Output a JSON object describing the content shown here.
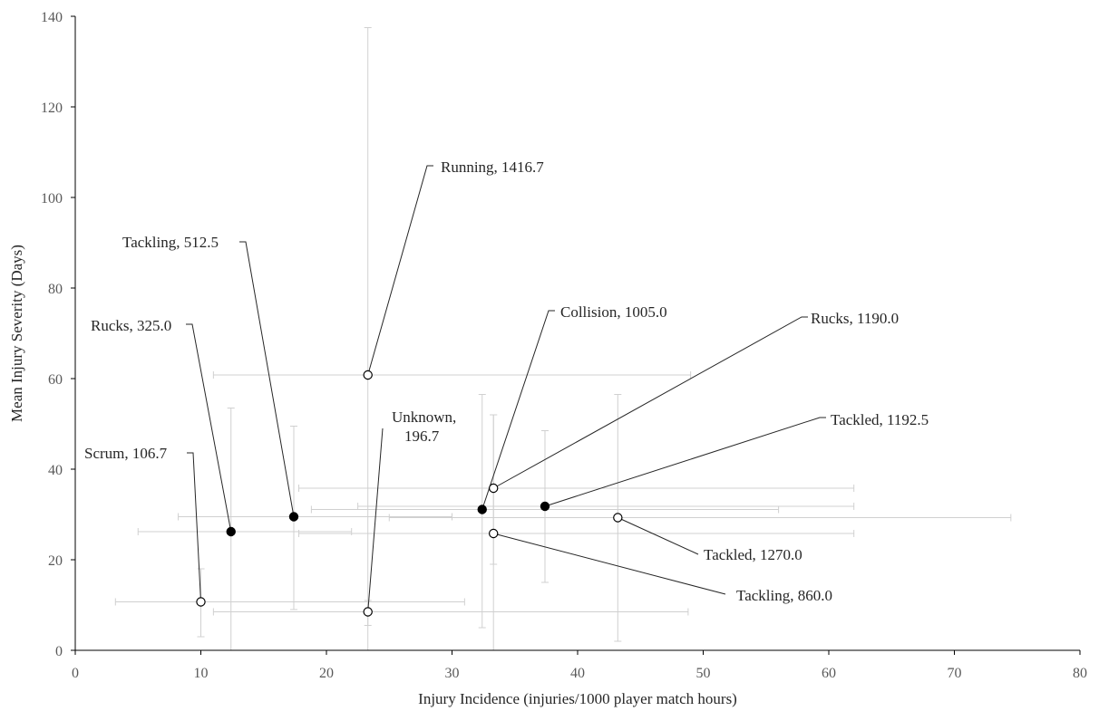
{
  "chart_data": {
    "type": "scatter",
    "xlabel": "Injury Incidence (injuries/1000 player match hours)",
    "ylabel": "Mean Injury Severity (Days)",
    "xlim": [
      0,
      80
    ],
    "ylim": [
      0,
      140
    ],
    "xticks": [
      "0",
      "10",
      "20",
      "30",
      "40",
      "50",
      "60",
      "70",
      "80"
    ],
    "yticks": [
      "0",
      "20",
      "40",
      "60",
      "80",
      "100",
      "120",
      "140"
    ],
    "grid": false,
    "legend": "none",
    "colors": {
      "axis": "#000000",
      "error_bar": "#d0d0d0",
      "leader": "#262626",
      "marker": "#000000",
      "open_fill": "#ffffff"
    },
    "points": [
      {
        "label": "Running, 1416.7",
        "x": 23.3,
        "y": 60.8,
        "marker": "open",
        "xerr": [
          11.0,
          49.0
        ],
        "yerr": [
          0,
          137.5
        ]
      },
      {
        "label": "Tackling, 512.5",
        "x": 17.4,
        "y": 29.5,
        "marker": "filled",
        "xerr": [
          8.2,
          30.0
        ],
        "yerr": [
          9.0,
          49.5
        ]
      },
      {
        "label": "Rucks, 325.0",
        "x": 12.4,
        "y": 26.2,
        "marker": "filled",
        "xerr": [
          5.0,
          22.0
        ],
        "yerr": [
          0,
          53.5
        ]
      },
      {
        "label": "Scrum, 106.7",
        "x": 10.0,
        "y": 10.7,
        "marker": "open",
        "xerr": [
          3.2,
          31.0
        ],
        "yerr": [
          3.0,
          18.0
        ]
      },
      {
        "label": "Unknown,|196.7",
        "x": 23.3,
        "y": 8.5,
        "marker": "open",
        "xerr": [
          11.0,
          48.8
        ],
        "yerr": [
          5.5,
          11.0
        ]
      },
      {
        "label": "Collision, 1005.0",
        "x": 32.4,
        "y": 31.1,
        "marker": "filled",
        "xerr": [
          18.8,
          56.0
        ],
        "yerr": [
          5.0,
          56.5
        ]
      },
      {
        "label": "Rucks, 1190.0",
        "x": 33.3,
        "y": 35.8,
        "marker": "open",
        "xerr": [
          17.8,
          62.0
        ],
        "yerr": [
          19.0,
          52.0
        ]
      },
      {
        "label": "Tackled, 1192.5",
        "x": 37.4,
        "y": 31.8,
        "marker": "filled",
        "xerr": [
          22.5,
          62.0
        ],
        "yerr": [
          15.0,
          48.5
        ]
      },
      {
        "label": "Tackled, 1270.0",
        "x": 43.2,
        "y": 29.3,
        "marker": "open",
        "xerr": [
          25.0,
          74.5
        ],
        "yerr": [
          2.0,
          56.5
        ]
      },
      {
        "label": "Tackling, 860.0",
        "x": 33.3,
        "y": 25.8,
        "marker": "open",
        "xerr": [
          17.8,
          62.0
        ],
        "yerr": [
          0,
          52.0
        ]
      }
    ]
  }
}
